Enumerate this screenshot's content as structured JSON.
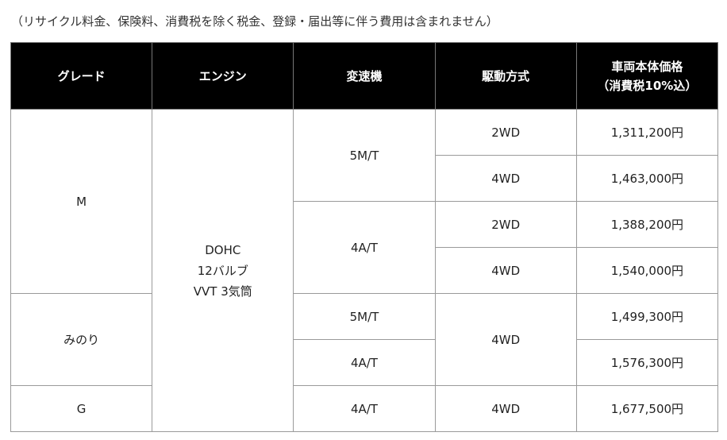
{
  "note": "（リサイクル料金、保険料、消費税を除く税金、登録・届出等に伴う費用は含まれません）",
  "headers": [
    "グレード",
    "エンジン",
    "変速機",
    "駆動方式",
    "車両本体価格",
    "（消費税10%込）"
  ],
  "engine": [
    "DOHC",
    "12バルブ",
    "VVT 3気筒"
  ],
  "grades": [
    "M",
    "みのり",
    "G"
  ],
  "rows": [
    {
      "transmission": "5M/T",
      "drive": "2WD",
      "price": "1,311,200円"
    },
    {
      "drive": "4WD",
      "price": "1,463,000円"
    },
    {
      "transmission": "4A/T",
      "drive": "2WD",
      "price": "1,388,200円"
    },
    {
      "drive": "4WD",
      "price": "1,540,000円"
    },
    {
      "transmission": "5M/T",
      "drive": "4WD",
      "price": "1,499,300円"
    },
    {
      "transmission": "4A/T",
      "price": "1,576,300円"
    },
    {
      "transmission": "4A/T",
      "drive": "4WD",
      "price": "1,677,500円"
    }
  ]
}
